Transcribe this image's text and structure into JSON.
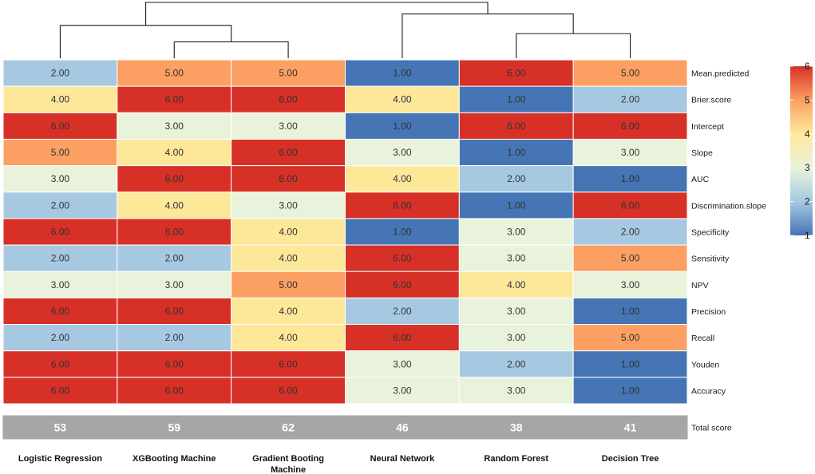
{
  "chart_data": {
    "type": "heatmap",
    "columns": [
      "Logistic Regression",
      "XGBooting Machine",
      "Gradient Booting Machine",
      "Neural Network",
      "Random Forest",
      "Decision Tree"
    ],
    "column_label_lines": [
      [
        "Logistic Regression"
      ],
      [
        "XGBooting Machine"
      ],
      [
        "Gradient Booting",
        "Machine"
      ],
      [
        "Neural Network"
      ],
      [
        "Random Forest"
      ],
      [
        "Decision Tree"
      ]
    ],
    "rows": [
      "Mean.predicted",
      "Brier.score",
      "Intercept",
      "Slope",
      "AUC",
      "Discrimination.slope",
      "Specificity",
      "Sensitivity",
      "NPV",
      "Precision",
      "Recall",
      "Youden",
      "Accuracy"
    ],
    "values": [
      [
        2,
        5,
        5,
        1,
        6,
        5
      ],
      [
        4,
        6,
        6,
        4,
        1,
        2
      ],
      [
        6,
        3,
        3,
        1,
        6,
        6
      ],
      [
        5,
        4,
        6,
        3,
        1,
        3
      ],
      [
        3,
        6,
        6,
        4,
        2,
        1
      ],
      [
        2,
        4,
        3,
        6,
        1,
        6
      ],
      [
        6,
        6,
        4,
        1,
        3,
        2
      ],
      [
        2,
        2,
        4,
        6,
        3,
        5
      ],
      [
        3,
        3,
        5,
        6,
        4,
        3
      ],
      [
        6,
        6,
        4,
        2,
        3,
        1
      ],
      [
        2,
        2,
        4,
        6,
        3,
        5
      ],
      [
        6,
        6,
        6,
        3,
        2,
        1
      ],
      [
        6,
        6,
        6,
        3,
        3,
        1
      ]
    ],
    "value_labels": [
      [
        "2.00",
        "5.00",
        "5.00",
        "1.00",
        "6.00",
        "5.00"
      ],
      [
        "4.00",
        "6.00",
        "6.00",
        "4.00",
        "1.00",
        "2.00"
      ],
      [
        "6.00",
        "3.00",
        "3.00",
        "1.00",
        "6.00",
        "6.00"
      ],
      [
        "5.00",
        "4.00",
        "6.00",
        "3.00",
        "1.00",
        "3.00"
      ],
      [
        "3.00",
        "6.00",
        "6.00",
        "4.00",
        "2.00",
        "1.00"
      ],
      [
        "2.00",
        "4.00",
        "3.00",
        "6.00",
        "1.00",
        "6.00"
      ],
      [
        "6.00",
        "6.00",
        "4.00",
        "1.00",
        "3.00",
        "2.00"
      ],
      [
        "2.00",
        "2.00",
        "4.00",
        "6.00",
        "3.00",
        "5.00"
      ],
      [
        "3.00",
        "3.00",
        "5.00",
        "6.00",
        "4.00",
        "3.00"
      ],
      [
        "6.00",
        "6.00",
        "4.00",
        "2.00",
        "3.00",
        "1.00"
      ],
      [
        "2.00",
        "2.00",
        "4.00",
        "6.00",
        "3.00",
        "5.00"
      ],
      [
        "6.00",
        "6.00",
        "6.00",
        "3.00",
        "2.00",
        "1.00"
      ],
      [
        "6.00",
        "6.00",
        "6.00",
        "3.00",
        "3.00",
        "1.00"
      ]
    ],
    "totals": [
      "53",
      "59",
      "62",
      "46",
      "38",
      "41"
    ],
    "total_label": "Total score",
    "legend": {
      "range": [
        1,
        6
      ],
      "ticks": [
        "1",
        "2",
        "3",
        "4",
        "5",
        "6"
      ],
      "placement": "right"
    },
    "dendrogram": {
      "merges": [
        {
          "left": "XGBooting Machine",
          "right": "Gradient Booting Machine",
          "height": 1
        },
        {
          "left": "Logistic Regression",
          "right": "cluster-1",
          "height": 2
        },
        {
          "left": "Random Forest",
          "right": "Decision Tree",
          "height": 1.5
        },
        {
          "left": "Neural Network",
          "right": "cluster-3",
          "height": 2.7
        },
        {
          "left": "cluster-2",
          "right": "cluster-4",
          "height": 3.4
        }
      ]
    }
  },
  "colors": {
    "score_1": "#4575B4",
    "score_2": "#A6C9E1",
    "score_3": "#E9F3DC",
    "score_4": "#FDE89A",
    "score_5": "#FBA062",
    "score_6": "#D73027",
    "total_bar": "#A6A6A6",
    "dendrogram_line": "#1a1a1a"
  }
}
